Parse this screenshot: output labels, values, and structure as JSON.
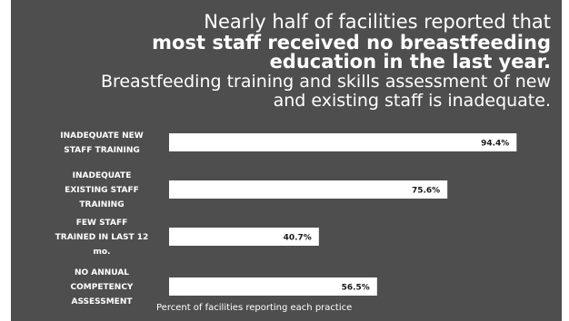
{
  "headline": {
    "line1": "Nearly half of facilities reported that",
    "line2": "most staff received no breastfeeding",
    "line3": "education in the last year.",
    "line4": "Breastfeeding training and skills assessment of new",
    "line5": "and existing staff is inadequate."
  },
  "colors": {
    "panel": "#4e4e4e",
    "bar": "#ffffff",
    "text": "#ffffff",
    "value_text": "#1a1a1a"
  },
  "chart_data": {
    "type": "bar",
    "orientation": "horizontal",
    "categories": [
      [
        "INADEQUATE NEW",
        "STAFF TRAINING"
      ],
      [
        "INADEQUATE",
        "EXISTING STAFF",
        "TRAINING"
      ],
      [
        "FEW STAFF",
        "TRAINED IN LAST 12",
        "mo."
      ],
      [
        "NO ANNUAL",
        "COMPETENCY",
        "ASSESSMENT"
      ]
    ],
    "values": [
      94.4,
      75.6,
      40.7,
      56.5
    ],
    "value_labels": [
      "94.4%",
      "75.6%",
      "40.7%",
      "56.5%"
    ],
    "xlabel": "Percent of facilities reporting each practice",
    "ylabel": "",
    "xlim": [
      0,
      100
    ],
    "grid": false,
    "legend": "none"
  }
}
